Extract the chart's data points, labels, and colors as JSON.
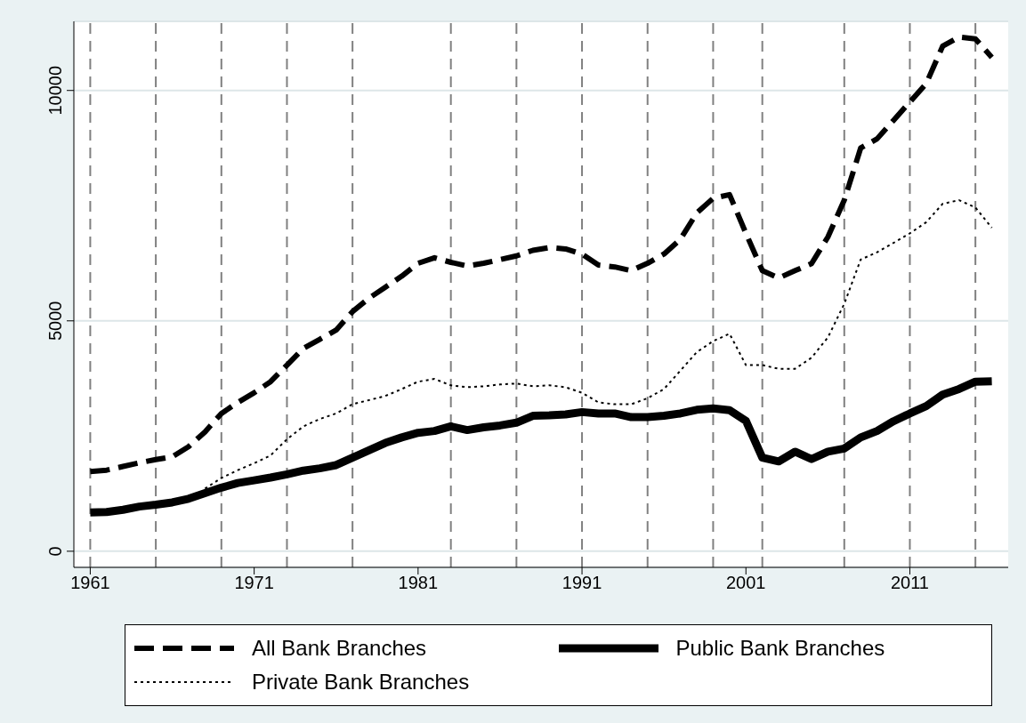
{
  "chart_data": {
    "type": "line",
    "x": [
      1961,
      1962,
      1963,
      1964,
      1965,
      1966,
      1967,
      1968,
      1969,
      1970,
      1971,
      1972,
      1973,
      1974,
      1975,
      1976,
      1977,
      1978,
      1979,
      1980,
      1981,
      1982,
      1983,
      1984,
      1985,
      1986,
      1987,
      1988,
      1989,
      1990,
      1991,
      1992,
      1993,
      1994,
      1995,
      1996,
      1997,
      1998,
      1999,
      2000,
      2001,
      2002,
      2003,
      2004,
      2005,
      2006,
      2007,
      2008,
      2009,
      2010,
      2011,
      2012,
      2013,
      2014,
      2015,
      2016
    ],
    "series": [
      {
        "name": "All Bank Branches",
        "color": "#000000",
        "line_style": "dashed",
        "values": [
          1730,
          1760,
          1840,
          1920,
          1990,
          2050,
          2270,
          2590,
          2990,
          3230,
          3440,
          3680,
          4040,
          4400,
          4600,
          4800,
          5200,
          5490,
          5730,
          5970,
          6250,
          6370,
          6270,
          6190,
          6250,
          6330,
          6410,
          6530,
          6590,
          6560,
          6450,
          6210,
          6170,
          6090,
          6250,
          6450,
          6770,
          7340,
          7660,
          7740,
          6900,
          6090,
          5930,
          6090,
          6240,
          6820,
          7620,
          8750,
          8950,
          9350,
          9750,
          10150,
          10960,
          11160,
          11120,
          10720
        ]
      },
      {
        "name": "Public Bank Branches",
        "color": "#000000",
        "line_style": "solid",
        "values": [
          840,
          850,
          900,
          970,
          1010,
          1060,
          1140,
          1260,
          1380,
          1480,
          1540,
          1600,
          1670,
          1750,
          1800,
          1870,
          2030,
          2190,
          2350,
          2470,
          2570,
          2610,
          2710,
          2630,
          2690,
          2730,
          2790,
          2940,
          2950,
          2970,
          3020,
          2990,
          2990,
          2910,
          2910,
          2940,
          2990,
          3070,
          3100,
          3060,
          2830,
          2030,
          1950,
          2160,
          2000,
          2160,
          2230,
          2470,
          2610,
          2820,
          2990,
          3150,
          3400,
          3520,
          3680,
          3690
        ]
      },
      {
        "name": "Private Bank Branches",
        "color": "#000000",
        "line_style": "dotted",
        "values": [
          null,
          null,
          null,
          null,
          null,
          null,
          null,
          1360,
          1590,
          1760,
          1910,
          2080,
          2430,
          2710,
          2870,
          2990,
          3190,
          3280,
          3370,
          3520,
          3680,
          3740,
          3600,
          3560,
          3580,
          3620,
          3640,
          3580,
          3600,
          3560,
          3440,
          3230,
          3190,
          3190,
          3320,
          3520,
          3920,
          4320,
          4560,
          4720,
          4040,
          4040,
          3960,
          3960,
          4200,
          4640,
          5370,
          6330,
          6490,
          6690,
          6900,
          7140,
          7540,
          7620,
          7460,
          7020
        ]
      }
    ],
    "xlim": [
      1960,
      2017
    ],
    "xticks": [
      1961,
      1971,
      1981,
      1991,
      2001,
      2011
    ],
    "ylim": [
      -350,
      11500
    ],
    "yticks": [
      0,
      5000,
      10000
    ],
    "grid": "y",
    "legend": "bottom",
    "marker": "none",
    "ref_lines": [
      {
        "axis": "x",
        "value": 1961,
        "color": "#808080",
        "line_style": "dashed"
      },
      {
        "axis": "x",
        "value": 1965,
        "color": "#808080",
        "line_style": "dashed"
      },
      {
        "axis": "x",
        "value": 1969,
        "color": "#808080",
        "line_style": "dashed"
      },
      {
        "axis": "x",
        "value": 1973,
        "color": "#808080",
        "line_style": "dashed"
      },
      {
        "axis": "x",
        "value": 1977,
        "color": "#808080",
        "line_style": "dashed"
      },
      {
        "axis": "x",
        "value": 1983,
        "color": "#808080",
        "line_style": "dashed"
      },
      {
        "axis": "x",
        "value": 1987,
        "color": "#808080",
        "line_style": "dashed"
      },
      {
        "axis": "x",
        "value": 1991,
        "color": "#808080",
        "line_style": "dashed"
      },
      {
        "axis": "x",
        "value": 1995,
        "color": "#808080",
        "line_style": "dashed"
      },
      {
        "axis": "x",
        "value": 1999,
        "color": "#808080",
        "line_style": "dashed"
      },
      {
        "axis": "x",
        "value": 2002,
        "color": "#808080",
        "line_style": "dashed"
      },
      {
        "axis": "x",
        "value": 2007,
        "color": "#808080",
        "line_style": "dashed"
      },
      {
        "axis": "x",
        "value": 2011,
        "color": "#808080",
        "line_style": "dashed"
      },
      {
        "axis": "x",
        "value": 2015,
        "color": "#808080",
        "line_style": "dashed"
      }
    ]
  }
}
